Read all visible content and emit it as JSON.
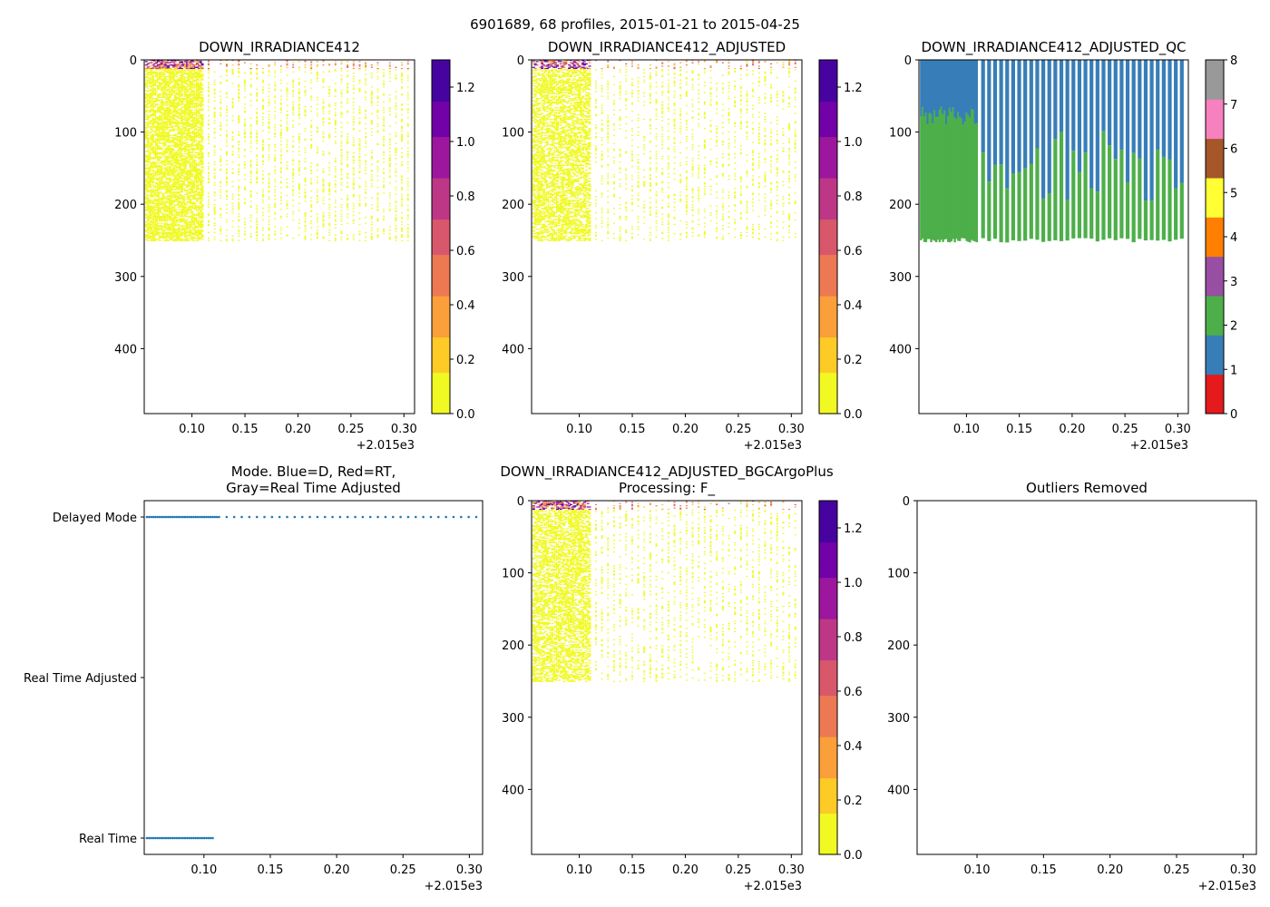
{
  "figure_title": "6901689, 68 profiles, 2015-01-21 to 2015-04-25",
  "colors": {
    "data_colormap": [
      "#f0f921",
      "#fdca26",
      "#fb9f3a",
      "#ed7953",
      "#d8576b",
      "#bd3786",
      "#9c179e",
      "#7201a8",
      "#46039f",
      "#0d0887"
    ],
    "qc_colors": [
      "#e41a1c",
      "#377eb8",
      "#4daf4a",
      "#984ea3",
      "#ff7f00",
      "#ffff33",
      "#a65628",
      "#f781bf",
      "#999999"
    ],
    "mode_points": "#1f77b4"
  },
  "chart_data": [
    {
      "id": "panel-raw",
      "type": "heatmap",
      "title": "DOWN_IRRADIANCE412",
      "xlim": [
        0.055,
        0.31
      ],
      "ylim": [
        490,
        0
      ],
      "xticks": [
        "0.10",
        "0.15",
        "0.20",
        "0.25",
        "0.30"
      ],
      "xtick_values": [
        0.1,
        0.15,
        0.2,
        0.25,
        0.3
      ],
      "x_offset_label": "+2.015e3",
      "yticks": [
        "0",
        "100",
        "200",
        "300",
        "400"
      ],
      "ytick_values": [
        0,
        100,
        200,
        300,
        400
      ],
      "max_depth": 250,
      "dense_until": 0.11,
      "colorbar": {
        "min": 0,
        "max": 1.3,
        "ticks": [
          "0.0",
          "0.2",
          "0.4",
          "0.6",
          "0.8",
          "1.0",
          "1.2"
        ],
        "tick_values": [
          0,
          0.2,
          0.4,
          0.6,
          0.8,
          1.0,
          1.2
        ]
      }
    },
    {
      "id": "panel-adjusted",
      "type": "heatmap",
      "title": "DOWN_IRRADIANCE412_ADJUSTED",
      "xlim": [
        0.055,
        0.31
      ],
      "ylim": [
        490,
        0
      ],
      "xticks": [
        "0.10",
        "0.15",
        "0.20",
        "0.25",
        "0.30"
      ],
      "xtick_values": [
        0.1,
        0.15,
        0.2,
        0.25,
        0.3
      ],
      "x_offset_label": "+2.015e3",
      "yticks": [
        "0",
        "100",
        "200",
        "300",
        "400"
      ],
      "ytick_values": [
        0,
        100,
        200,
        300,
        400
      ],
      "max_depth": 250,
      "dense_until": 0.11,
      "colorbar": {
        "min": 0,
        "max": 1.3,
        "ticks": [
          "0.0",
          "0.2",
          "0.4",
          "0.6",
          "0.8",
          "1.0",
          "1.2"
        ],
        "tick_values": [
          0,
          0.2,
          0.4,
          0.6,
          0.8,
          1.0,
          1.2
        ]
      }
    },
    {
      "id": "panel-qc",
      "type": "heatmap",
      "title": "DOWN_IRRADIANCE412_ADJUSTED_QC",
      "xlim": [
        0.055,
        0.31
      ],
      "ylim": [
        490,
        0
      ],
      "xticks": [
        "0.10",
        "0.15",
        "0.20",
        "0.25",
        "0.30"
      ],
      "xtick_values": [
        0.1,
        0.15,
        0.2,
        0.25,
        0.3
      ],
      "x_offset_label": "+2.015e3",
      "yticks": [
        "0",
        "100",
        "200",
        "300",
        "400"
      ],
      "ytick_values": [
        0,
        100,
        200,
        300,
        400
      ],
      "max_depth": 250,
      "dense_until": 0.11,
      "qc_flag1_depth_dense": [
        65,
        90
      ],
      "qc_flag1_depth_sparse": [
        95,
        195
      ],
      "colorbar": {
        "min": 0,
        "max": 8,
        "ticks": [
          "0",
          "1",
          "2",
          "3",
          "4",
          "5",
          "6",
          "7",
          "8"
        ],
        "tick_values": [
          0,
          1,
          2,
          3,
          4,
          5,
          6,
          7,
          8
        ]
      }
    },
    {
      "id": "panel-mode",
      "type": "scatter",
      "title_lines": [
        "Mode. Blue=D, Red=RT,",
        "Gray=Real Time Adjusted"
      ],
      "xlim": [
        0.055,
        0.31
      ],
      "xticks": [
        "0.10",
        "0.15",
        "0.20",
        "0.25",
        "0.30"
      ],
      "xtick_values": [
        0.1,
        0.15,
        0.2,
        0.25,
        0.3
      ],
      "x_offset_label": "+2.015e3",
      "categories": [
        "Delayed Mode",
        "Real Time Adjusted",
        "Real Time"
      ],
      "series": [
        {
          "name": "Delayed Mode",
          "x_start": 0.057,
          "x_end": 0.31,
          "dense_until": 0.11,
          "dense_step": 0.0016,
          "sparse_step": 0.0057
        },
        {
          "name": "Real Time",
          "x_start": 0.057,
          "x_end": 0.108,
          "dense_until": 0.108,
          "dense_step": 0.0016,
          "sparse_step": 0.0016
        }
      ]
    },
    {
      "id": "panel-bgc",
      "type": "heatmap",
      "title_lines": [
        "DOWN_IRRADIANCE412_ADJUSTED_BGCArgoPlus",
        "Processing: F_"
      ],
      "xlim": [
        0.055,
        0.31
      ],
      "ylim": [
        490,
        0
      ],
      "xticks": [
        "0.10",
        "0.15",
        "0.20",
        "0.25",
        "0.30"
      ],
      "xtick_values": [
        0.1,
        0.15,
        0.2,
        0.25,
        0.3
      ],
      "x_offset_label": "+2.015e3",
      "yticks": [
        "0",
        "100",
        "200",
        "300",
        "400"
      ],
      "ytick_values": [
        0,
        100,
        200,
        300,
        400
      ],
      "max_depth": 250,
      "dense_until": 0.11,
      "colorbar": {
        "min": 0,
        "max": 1.3,
        "ticks": [
          "0.0",
          "0.2",
          "0.4",
          "0.6",
          "0.8",
          "1.0",
          "1.2"
        ],
        "tick_values": [
          0,
          0.2,
          0.4,
          0.6,
          0.8,
          1.0,
          1.2
        ]
      }
    },
    {
      "id": "panel-outliers",
      "type": "scatter",
      "title": "Outliers Removed",
      "xlim": [
        0.055,
        0.31
      ],
      "ylim": [
        490,
        0
      ],
      "xticks": [
        "0.10",
        "0.15",
        "0.20",
        "0.25",
        "0.30"
      ],
      "xtick_values": [
        0.1,
        0.15,
        0.2,
        0.25,
        0.3
      ],
      "x_offset_label": "+2.015e3",
      "yticks": [
        "0",
        "100",
        "200",
        "300",
        "400"
      ],
      "ytick_values": [
        0,
        100,
        200,
        300,
        400
      ],
      "points": []
    }
  ]
}
